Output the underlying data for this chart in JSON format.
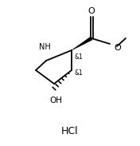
{
  "bg_color": "#ffffff",
  "line_color": "#000000",
  "text_color": "#000000",
  "figsize": [
    1.76,
    1.83
  ],
  "dpi": 100,
  "hcl_text": "HCl",
  "nh_text": "NH",
  "oh_text": "OH",
  "o_carbonyl": "O",
  "o_ester": "O",
  "stereo1_text": "&1",
  "stereo2_text": "&1"
}
